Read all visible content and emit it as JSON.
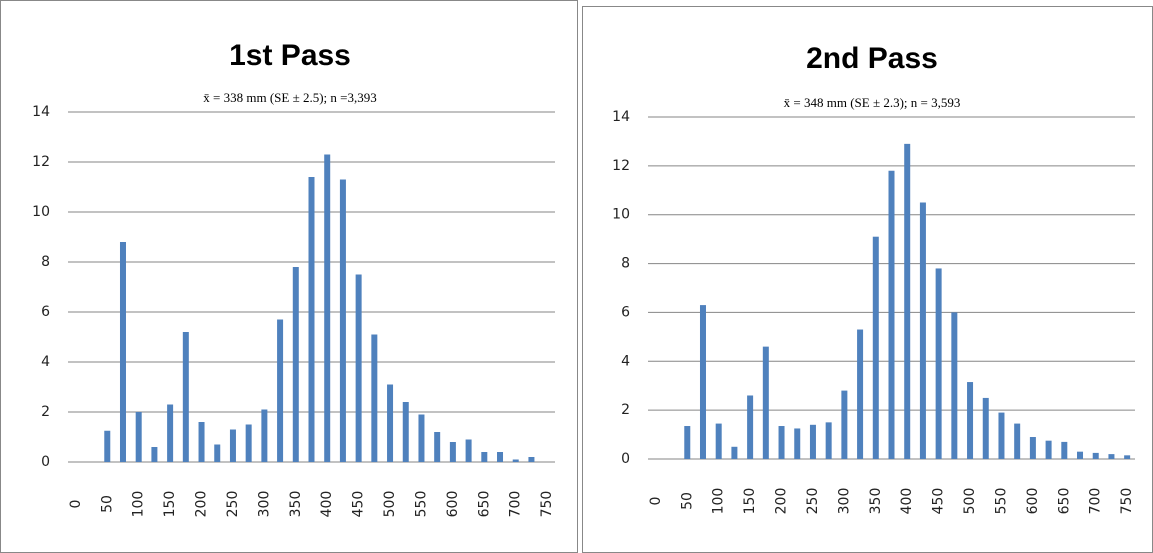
{
  "chart_data": [
    {
      "type": "bar",
      "title": "1st Pass",
      "subtitle": "x̄ = 338 mm (SE ± 2.5); n =3,393",
      "categories": [
        0,
        null,
        50,
        null,
        100,
        null,
        150,
        null,
        200,
        null,
        250,
        null,
        300,
        null,
        350,
        null,
        400,
        null,
        450,
        null,
        500,
        null,
        550,
        null,
        600,
        null,
        650,
        null,
        700,
        null,
        750
      ],
      "values": [
        0,
        0,
        1.25,
        8.8,
        2.0,
        0.6,
        2.3,
        5.2,
        1.6,
        0.7,
        1.3,
        1.5,
        2.1,
        5.7,
        7.8,
        11.4,
        12.3,
        11.3,
        7.5,
        5.1,
        3.1,
        2.4,
        1.9,
        1.2,
        0.8,
        0.9,
        0.4,
        0.4,
        0.1,
        0.2,
        0
      ],
      "color": "#4f81bd",
      "ylim": [
        0,
        14
      ],
      "yticks": [
        0,
        2,
        4,
        6,
        8,
        10,
        12,
        14
      ],
      "grid": true
    },
    {
      "type": "bar",
      "title": "2nd Pass",
      "subtitle": "x̄ = 348 mm (SE ± 2.3); n = 3,593",
      "categories": [
        0,
        null,
        50,
        null,
        100,
        null,
        150,
        null,
        200,
        null,
        250,
        null,
        300,
        null,
        350,
        null,
        400,
        null,
        450,
        null,
        500,
        null,
        550,
        null,
        600,
        null,
        650,
        null,
        700,
        null,
        750
      ],
      "values": [
        0,
        0,
        1.35,
        6.3,
        1.45,
        0.5,
        2.6,
        4.6,
        1.35,
        1.25,
        1.4,
        1.5,
        2.8,
        5.3,
        9.1,
        11.8,
        12.9,
        10.5,
        7.8,
        6.0,
        3.15,
        2.5,
        1.9,
        1.45,
        0.9,
        0.75,
        0.7,
        0.3,
        0.25,
        0.2,
        0.15
      ],
      "color": "#4f81bd",
      "ylim": [
        0,
        14
      ],
      "yticks": [
        0,
        2,
        4,
        6,
        8,
        10,
        12,
        14
      ],
      "grid": true
    }
  ]
}
